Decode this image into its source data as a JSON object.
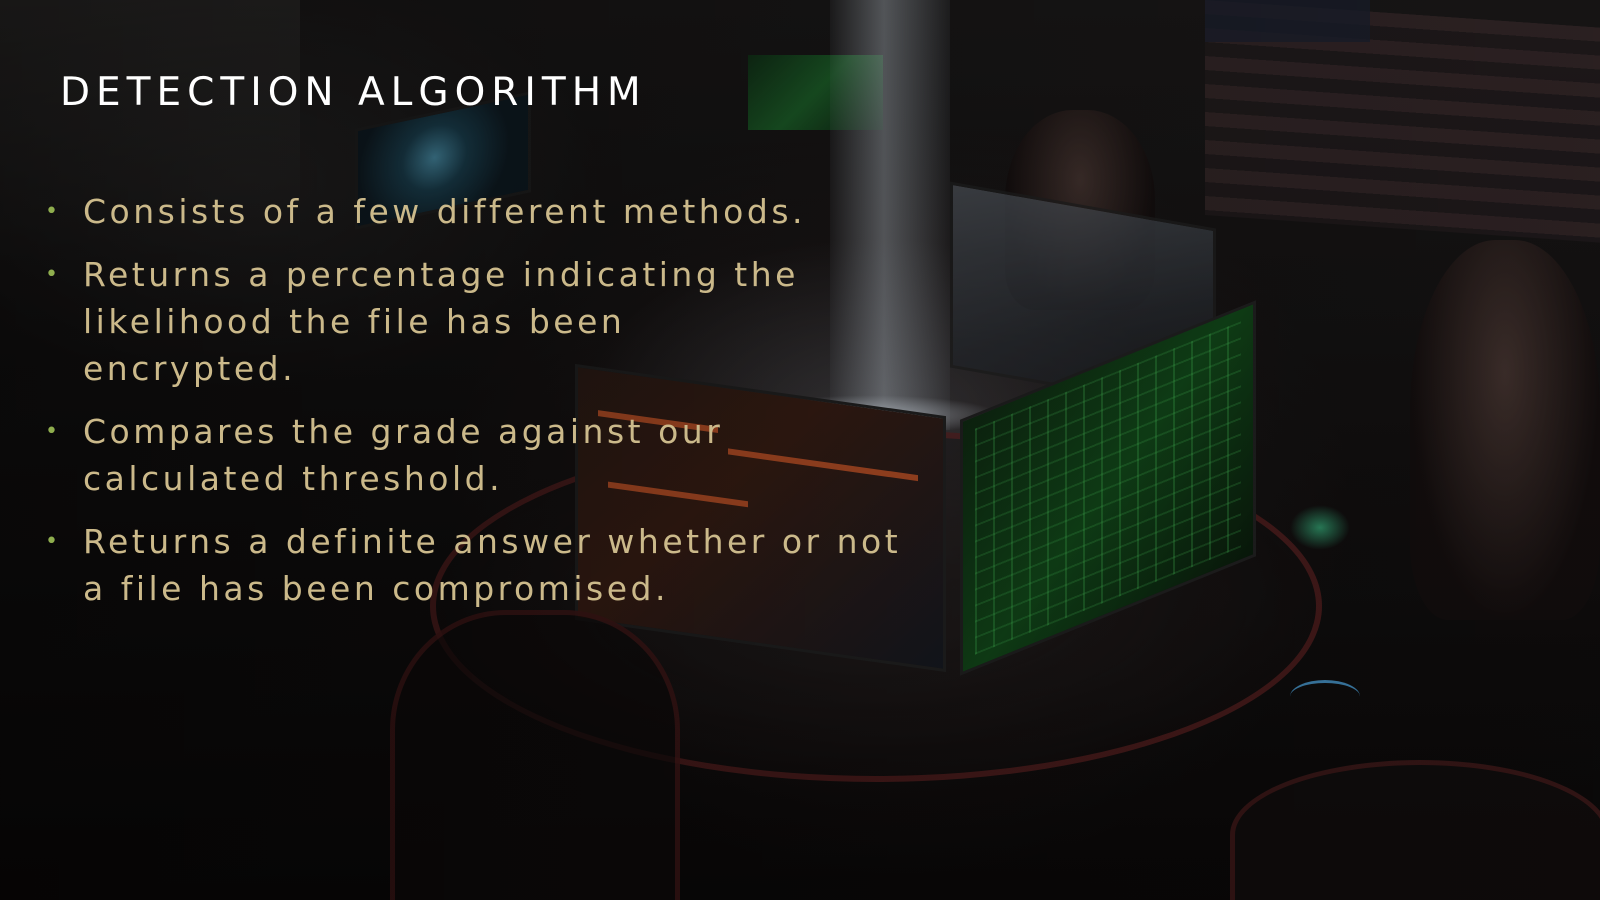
{
  "slide": {
    "title": "DETECTION ALGORITHM",
    "bullets": [
      "Consists of a few different methods.",
      "Returns a percentage indicating the likelihood the file has been encrypted.",
      "Compares the grade against our calculated threshold.",
      "Returns a definite answer whether or not a file has been compromised."
    ],
    "bullet_marker": "•",
    "background_image": "dark-hacker-room-photo",
    "colors": {
      "title": "#ffffff",
      "bullet_text": "#cbb98a",
      "bullet_marker": "#8fae4e"
    }
  }
}
